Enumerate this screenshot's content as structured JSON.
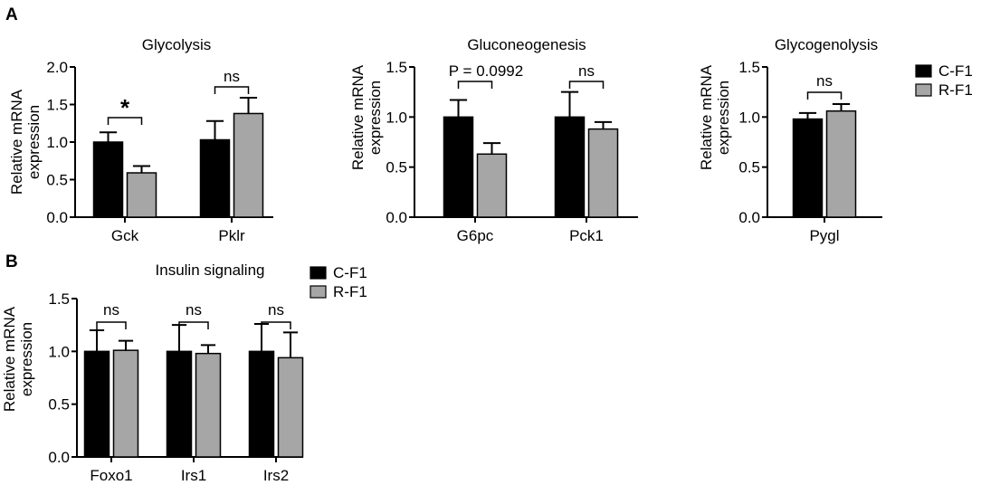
{
  "panel_labels": [
    "A",
    "B"
  ],
  "colors": {
    "C-F1": "#000000",
    "R-F1": "#a6a6a6"
  },
  "chart_data": [
    {
      "type": "bar",
      "title": "Glycolysis",
      "ylabel": "Relative mRNA expression",
      "ylim": [
        0,
        2.0
      ],
      "yticks": [
        "0.0",
        "0.5",
        "1.0",
        "1.5",
        "2.0"
      ],
      "categories": [
        "Gck",
        "Pklr"
      ],
      "series": [
        {
          "name": "C-F1",
          "values": [
            1.0,
            1.03
          ],
          "errors": [
            0.13,
            0.25
          ]
        },
        {
          "name": "R-F1",
          "values": [
            0.59,
            1.38
          ],
          "errors": [
            0.09,
            0.21
          ]
        }
      ],
      "annotations": [
        "*",
        "ns"
      ],
      "legend": ""
    },
    {
      "type": "bar",
      "title": "Gluconeogenesis",
      "ylabel": "Relative mRNA expression",
      "ylim": [
        0,
        1.5
      ],
      "yticks": [
        "0.0",
        "0.5",
        "1.0",
        "1.5"
      ],
      "categories": [
        "G6pc",
        "Pck1"
      ],
      "series": [
        {
          "name": "C-F1",
          "values": [
            1.0,
            1.0
          ],
          "errors": [
            0.17,
            0.25
          ]
        },
        {
          "name": "R-F1",
          "values": [
            0.63,
            0.88
          ],
          "errors": [
            0.11,
            0.07
          ]
        }
      ],
      "annotations": [
        "P = 0.0992",
        "ns"
      ],
      "legend": ""
    },
    {
      "type": "bar",
      "title": "Glycogenolysis",
      "ylabel": "Relative mRNA expression",
      "ylim": [
        0,
        1.5
      ],
      "yticks": [
        "0.0",
        "0.5",
        "1.0",
        "1.5"
      ],
      "categories": [
        "Pygl"
      ],
      "series": [
        {
          "name": "C-F1",
          "values": [
            0.98
          ],
          "errors": [
            0.06
          ]
        },
        {
          "name": "R-F1",
          "values": [
            1.06
          ],
          "errors": [
            0.07
          ]
        }
      ],
      "annotations": [
        "ns"
      ],
      "legend": "right"
    },
    {
      "type": "bar",
      "title": "Insulin signaling",
      "ylabel": "Relative mRNA expression",
      "ylim": [
        0,
        1.5
      ],
      "yticks": [
        "0.0",
        "0.5",
        "1.0",
        "1.5"
      ],
      "categories": [
        "Foxo1",
        "Irs1",
        "Irs2"
      ],
      "series": [
        {
          "name": "C-F1",
          "values": [
            1.0,
            1.0,
            1.0
          ],
          "errors": [
            0.2,
            0.25,
            0.26
          ]
        },
        {
          "name": "R-F1",
          "values": [
            1.01,
            0.98,
            0.94
          ],
          "errors": [
            0.09,
            0.08,
            0.24
          ]
        }
      ],
      "annotations": [
        "ns",
        "ns",
        "ns"
      ],
      "legend": "right"
    }
  ]
}
